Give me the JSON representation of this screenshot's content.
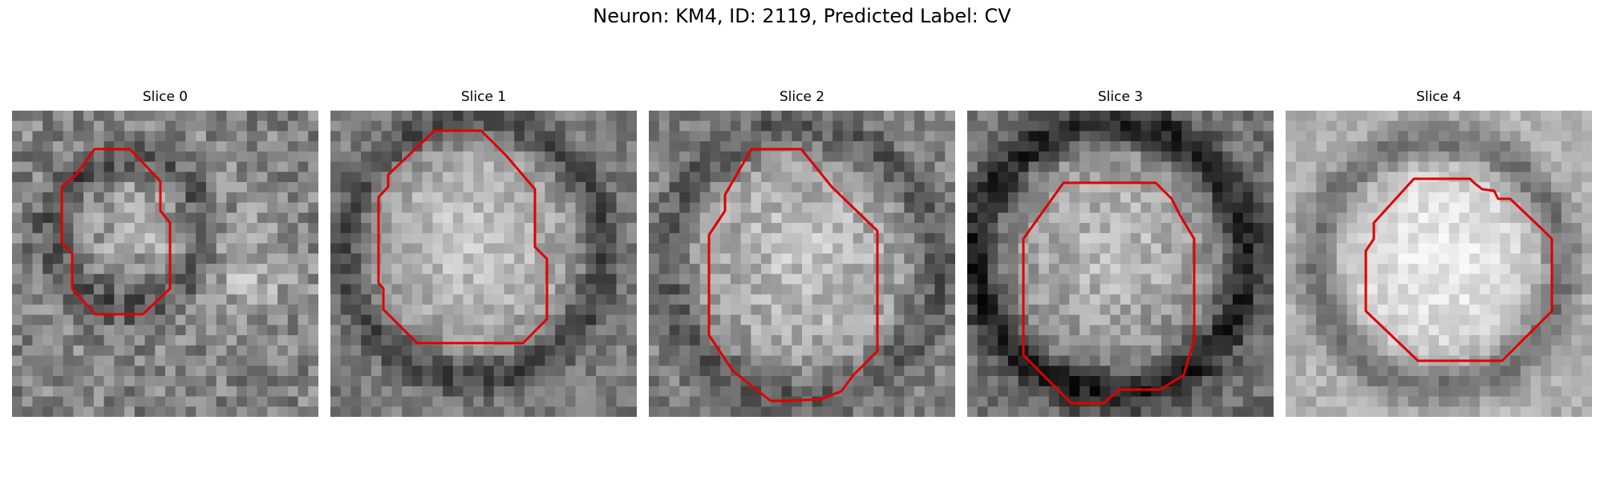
{
  "figure": {
    "title": "Neuron: KM4, ID: 2119, Predicted Label: CV",
    "contour_color": "#e00000"
  },
  "panels": [
    {
      "title": "Slice 0",
      "contour_name": "roi-contour-slice-0"
    },
    {
      "title": "Slice 1",
      "contour_name": "roi-contour-slice-1"
    },
    {
      "title": "Slice 2",
      "contour_name": "roi-contour-slice-2"
    },
    {
      "title": "Slice 3",
      "contour_name": "roi-contour-slice-3"
    },
    {
      "title": "Slice 4",
      "contour_name": "roi-contour-slice-4"
    }
  ]
}
